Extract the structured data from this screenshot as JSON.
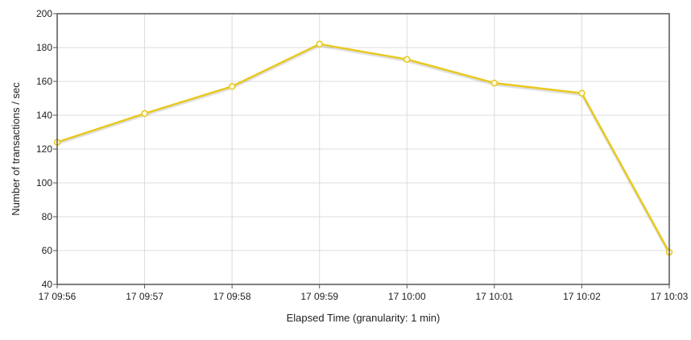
{
  "chart_data": {
    "type": "line",
    "x": [
      "17 09:56",
      "17 09:57",
      "17 09:58",
      "17 09:59",
      "17 10:00",
      "17 10:01",
      "17 10:02",
      "17 10:03"
    ],
    "series": [
      {
        "values": [
          124,
          141,
          157,
          182,
          173,
          159,
          153,
          59
        ],
        "color": "#e8c81e"
      }
    ],
    "xlabel": "Elapsed Time (granularity: 1 min)",
    "ylabel": "Number of transactions / sec",
    "ylim": [
      40,
      200
    ],
    "yticks": [
      40,
      60,
      80,
      100,
      120,
      140,
      160,
      180,
      200
    ],
    "grid": true,
    "legend": "none"
  }
}
